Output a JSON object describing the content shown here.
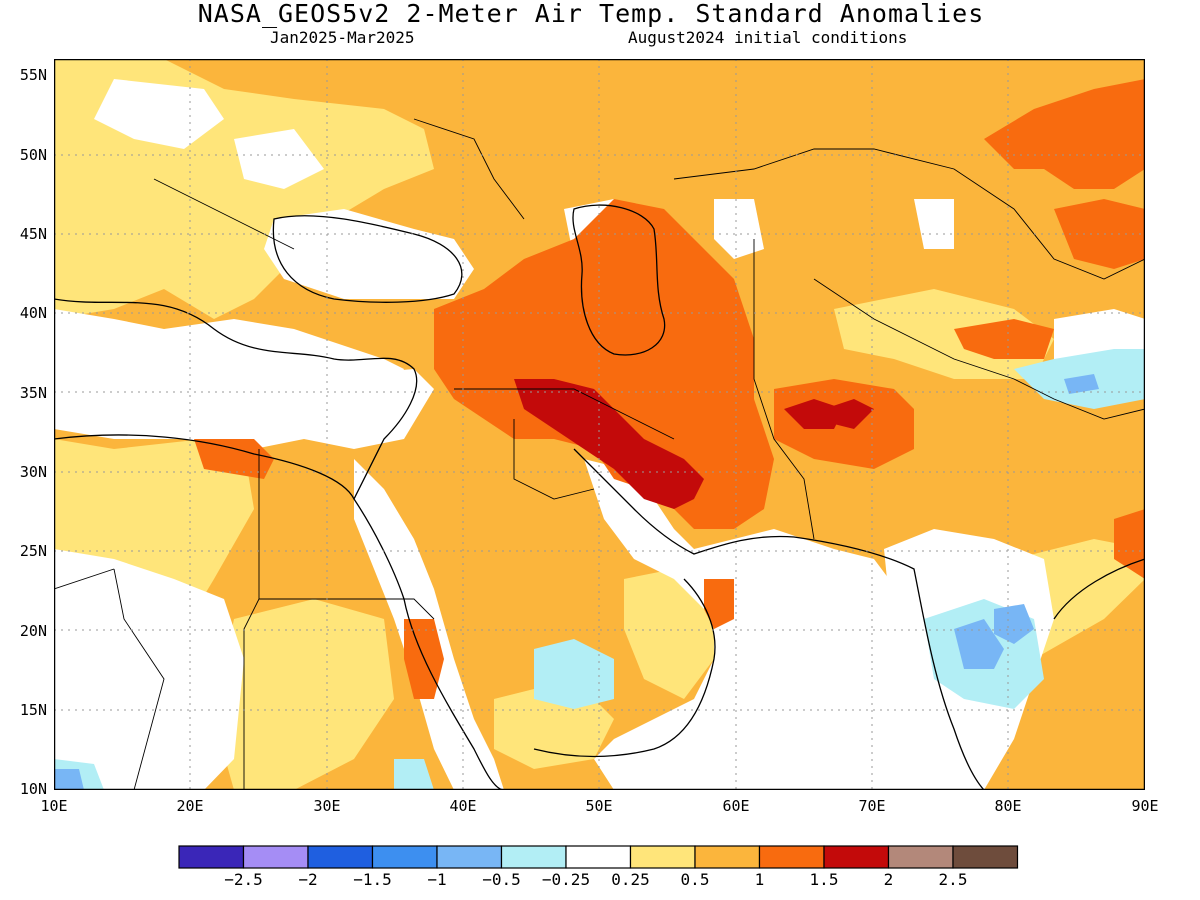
{
  "title": "NASA_GEOS5v2 2-Meter Air Temp. Standard Anomalies",
  "period": "Jan2025-Mar2025",
  "init": "August2024 initial conditions",
  "lat_ticks": [
    "55N",
    "50N",
    "45N",
    "40N",
    "35N",
    "30N",
    "25N",
    "20N",
    "15N",
    "10N"
  ],
  "lon_ticks": [
    "10E",
    "20E",
    "30E",
    "40E",
    "50E",
    "60E",
    "70E",
    "80E",
    "90E"
  ],
  "colorbar": {
    "colors": [
      "#3a26b8",
      "#a58df5",
      "#1f5fe0",
      "#3d8ff0",
      "#78b6f5",
      "#b2eef5",
      "#ffffff",
      "#ffe57a",
      "#fbb53c",
      "#f86b0f",
      "#c30a0a",
      "#b3887a",
      "#6e4c3c"
    ],
    "labels": [
      "-2.5",
      "-2",
      "-1.5",
      "-1",
      "-0.5",
      "-0.25",
      "0.25",
      "0.5",
      "1",
      "1.5",
      "2",
      "2.5"
    ]
  },
  "colors": {
    "light_yellow": "#ffe57a",
    "light_orange": "#fbb53c",
    "orange": "#f86b0f",
    "red": "#c30a0a",
    "light_cyan": "#b2eef5",
    "light_blue": "#78b6f5"
  }
}
